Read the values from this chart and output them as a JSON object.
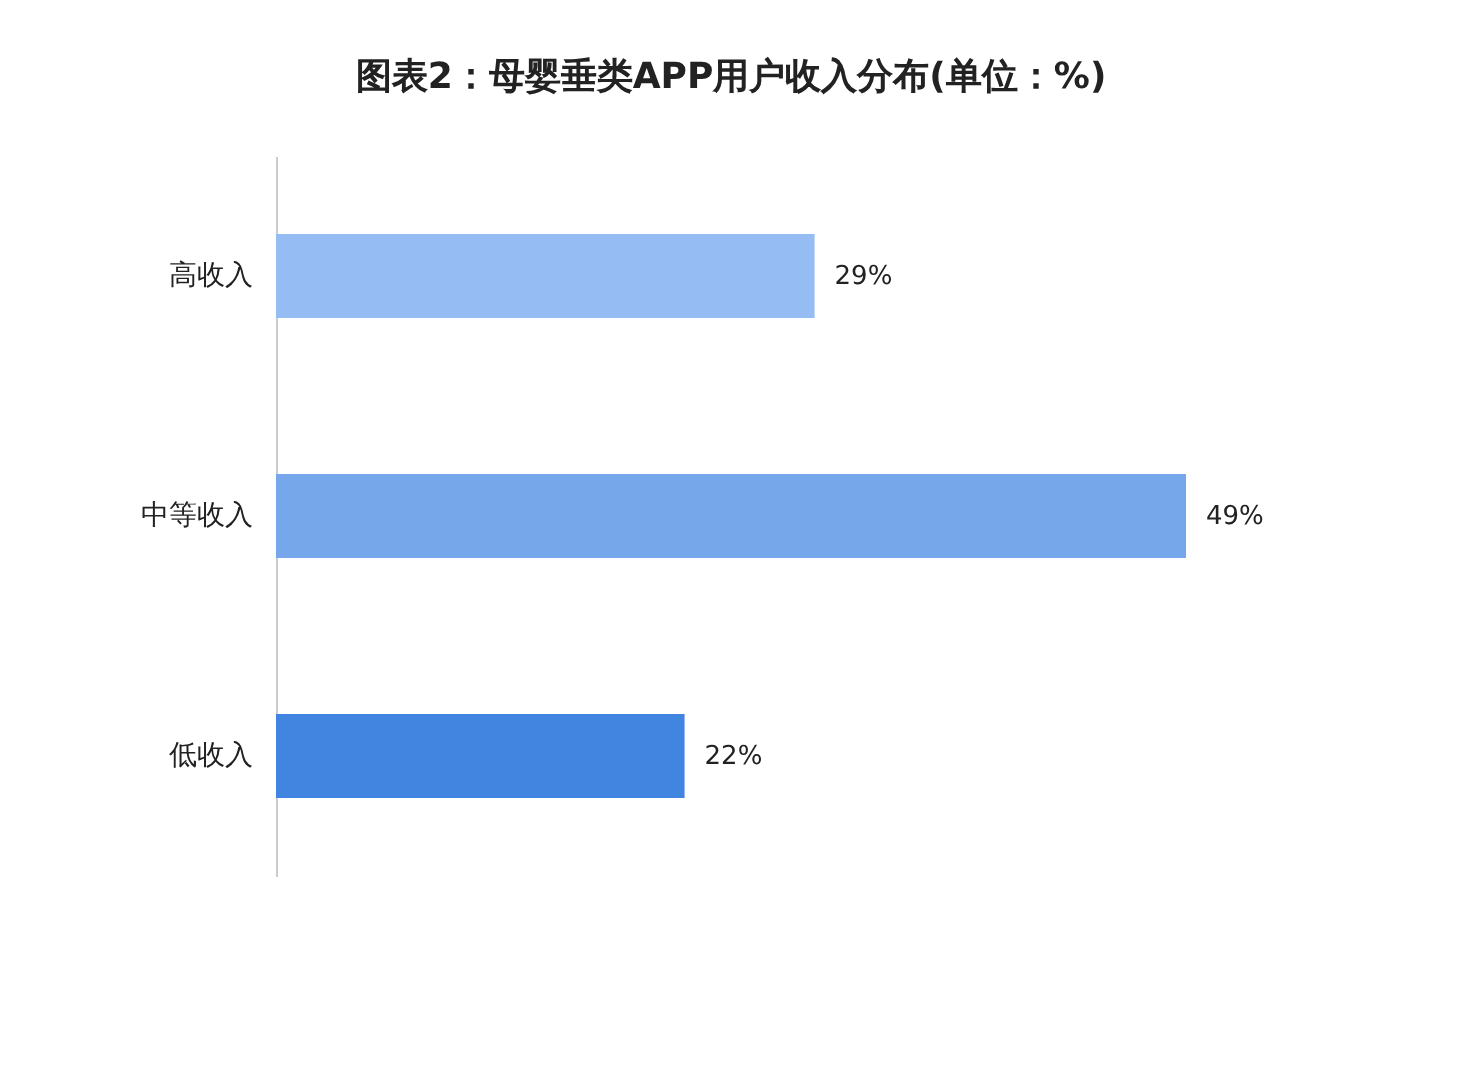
{
  "chart_data": {
    "type": "bar",
    "orientation": "horizontal",
    "title": "图表2：母婴垂类APP用户收入分布(单位：%)",
    "categories": [
      "高收入",
      "中等收入",
      "低收入"
    ],
    "values": [
      29,
      49,
      22
    ],
    "colors": [
      "#95bdf3",
      "#76a7ea",
      "#4285e1"
    ],
    "data_labels": true,
    "value_labels": [
      "29%",
      "49%",
      "22%"
    ],
    "grid": false
  }
}
